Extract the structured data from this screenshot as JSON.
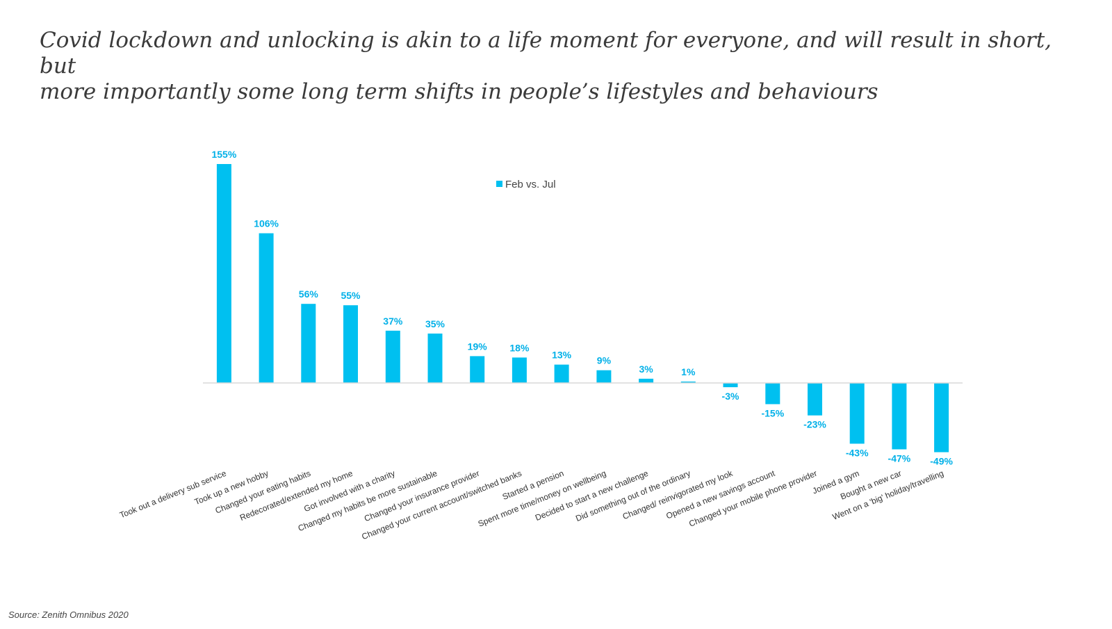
{
  "headline": {
    "line1": "Covid lockdown and unlocking is akin to a life moment for everyone, and will result in short, but",
    "line2": "more importantly some long term shifts in people’s lifestyles and behaviours"
  },
  "source": "Source: Zenith Omnibus 2020",
  "colors": {
    "bar": "#00C0F0",
    "label": "#00B0E8",
    "axis": "#D9D9D9",
    "category_text": "#333333"
  },
  "chart_data": {
    "type": "bar",
    "title": "",
    "xlabel": "",
    "ylabel": "",
    "ylim": [
      -49,
      155
    ],
    "legend": {
      "position": "top-center",
      "entries": [
        "Feb vs. Jul"
      ]
    },
    "categories": [
      "Took out a delivery sub service",
      "Took up a new hobby",
      "Changed your eating habits",
      "Redecorated/extended my home",
      "Got involved with a charity",
      "Changed my habits be more sustainable",
      "Changed your insurance provider",
      "Changed your current account/switched banks",
      "Started a pension",
      "Spent more time/money on wellbeing",
      "Decided to start a new challenge",
      "Did something out of the ordinary",
      "Changed/ reinvigorated my look",
      "Opened a new savings account",
      "Changed your mobile phone provider",
      "Joined a gym",
      "Bought a new car",
      "Went on a 'big' holiday/travelling"
    ],
    "series": [
      {
        "name": "Feb vs. Jul",
        "values": [
          155,
          106,
          56,
          55,
          37,
          35,
          19,
          18,
          13,
          9,
          3,
          1,
          -3,
          -15,
          -23,
          -43,
          -47,
          -49
        ],
        "labels": [
          "155%",
          "106%",
          "56%",
          "55%",
          "37%",
          "35%",
          "19%",
          "18%",
          "13%",
          "9%",
          "3%",
          "1%",
          "-3%",
          "-15%",
          "-23%",
          "-43%",
          "-47%",
          "-49%"
        ]
      }
    ]
  }
}
